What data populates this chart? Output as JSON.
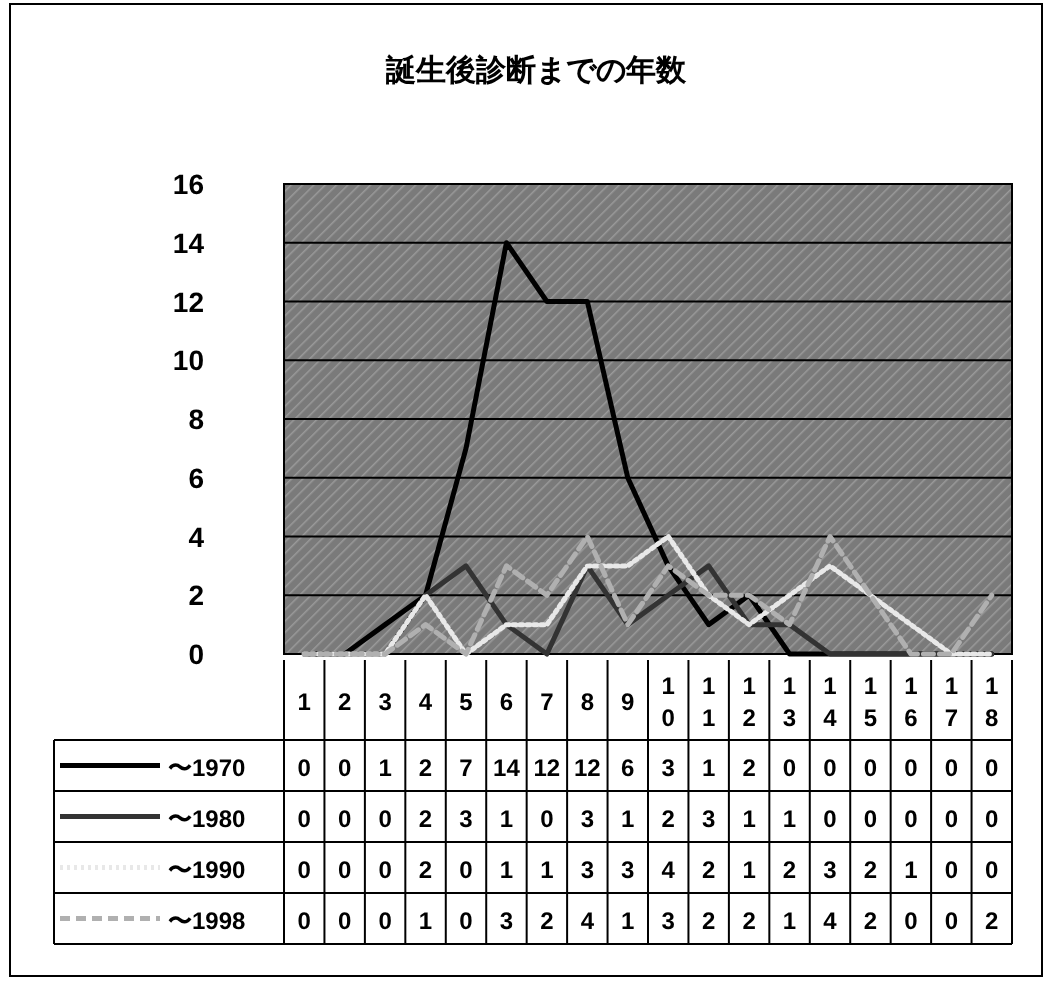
{
  "chart_data": {
    "type": "line",
    "title": "誕生後診断までの年数",
    "categories": [
      "1",
      "2",
      "3",
      "4",
      "5",
      "6",
      "7",
      "8",
      "9",
      "10",
      "11",
      "12",
      "13",
      "14",
      "15",
      "16",
      "17",
      "18"
    ],
    "series": [
      {
        "name": "〜1970",
        "color": "#000000",
        "line_style": "solid",
        "values": [
          0,
          0,
          1,
          2,
          7,
          14,
          12,
          12,
          6,
          3,
          1,
          2,
          0,
          0,
          0,
          0,
          0,
          0
        ]
      },
      {
        "name": "〜1980",
        "color": "#333333",
        "line_style": "solid",
        "values": [
          0,
          0,
          0,
          2,
          3,
          1,
          0,
          3,
          1,
          2,
          3,
          1,
          1,
          0,
          0,
          0,
          0,
          0
        ]
      },
      {
        "name": "〜1990",
        "color": "#e8e8e8",
        "line_style": "dotted",
        "values": [
          0,
          0,
          0,
          2,
          0,
          1,
          1,
          3,
          3,
          4,
          2,
          1,
          2,
          3,
          2,
          1,
          0,
          0
        ]
      },
      {
        "name": "〜1998",
        "color": "#b0b0b0",
        "line_style": "dashed",
        "values": [
          0,
          0,
          0,
          1,
          0,
          3,
          2,
          4,
          1,
          3,
          2,
          2,
          1,
          4,
          2,
          0,
          0,
          2
        ]
      }
    ],
    "ylim": [
      0,
      16
    ],
    "yticks": [
      0,
      2,
      4,
      6,
      8,
      10,
      12,
      14,
      16
    ],
    "grid": "y",
    "data_labels": true,
    "legend": "bottom"
  }
}
